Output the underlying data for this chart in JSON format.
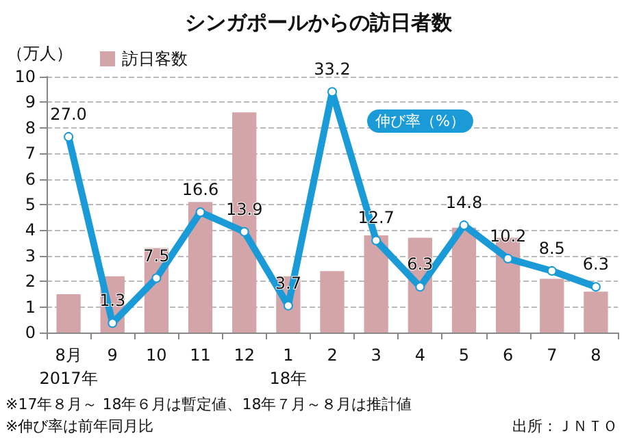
{
  "chart_data": {
    "type": "bar",
    "title": "シンガポールからの訪日者数",
    "ylabel": "（万人）",
    "categories": [
      "8月\n2017年",
      "9",
      "10",
      "11",
      "12",
      "1\n18年",
      "2",
      "3",
      "4",
      "5",
      "6",
      "7",
      "8"
    ],
    "series": [
      {
        "name": "訪日客数",
        "color": "#d4a5a8",
        "values": [
          1.5,
          2.2,
          3.3,
          5.1,
          8.6,
          2.2,
          2.4,
          3.8,
          3.7,
          4.1,
          3.7,
          2.1,
          1.6
        ]
      },
      {
        "name": "伸び率（%）",
        "type": "line",
        "axis": "y2",
        "color": "#1a9ad6",
        "values": [
          27.0,
          1.3,
          7.5,
          16.6,
          13.9,
          3.7,
          33.2,
          12.7,
          6.3,
          14.8,
          10.2,
          8.5,
          6.3
        ],
        "value_labels": [
          "27.0",
          "1.3",
          "7.5",
          "16.6",
          "13.9",
          "3.7",
          "33.2",
          "12.7",
          "6.3",
          "14.8",
          "10.2",
          "8.5",
          "6.3"
        ]
      }
    ],
    "ylim": [
      0,
      10
    ],
    "yticks": [
      0,
      1,
      2,
      3,
      4,
      5,
      6,
      7,
      8,
      9,
      10
    ],
    "y2lim": [
      0,
      35.3
    ],
    "grid": "y",
    "legend": "top left",
    "marker": "circle",
    "annotations": [
      "※17年８月～ 18年６月は暫定値、18年７月～８月は推計値",
      "※伸び率は前年同月比",
      "出所：ＪＮＴＯ"
    ]
  }
}
